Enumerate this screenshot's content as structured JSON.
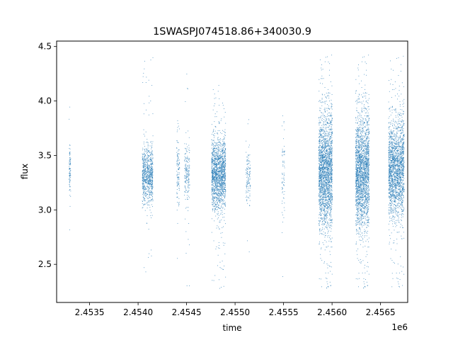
{
  "chart_data": {
    "type": "scatter",
    "title": "1SWASPJ074518.86+340030.9",
    "xlabel": "time",
    "ylabel": "flux",
    "x_offset_label": "1e6",
    "xlim": [
      2453160,
      2456780
    ],
    "ylim": [
      2.15,
      4.55
    ],
    "x_ticks": [
      2453500,
      2454000,
      2454500,
      2455000,
      2455500,
      2456000,
      2456500
    ],
    "x_tick_labels": [
      "2.4535",
      "2.4540",
      "2.4545",
      "2.4550",
      "2.4555",
      "2.4560",
      "2.4565"
    ],
    "y_ticks": [
      2.5,
      3.0,
      3.5,
      4.0,
      4.5
    ],
    "y_tick_labels": [
      "2.5",
      "3.0",
      "3.5",
      "4.0",
      "4.5"
    ],
    "grid": false,
    "legend": false,
    "marker_color": "#1f77b4",
    "observing_seasons": [
      {
        "x_start": 2453285,
        "x_end": 2453302,
        "center": 3.35,
        "spread": 0.12,
        "points": 90,
        "ymin": 2.68,
        "ymax": 4.05
      },
      {
        "x_start": 2454040,
        "x_end": 2454150,
        "center": 3.32,
        "spread": 0.13,
        "points": 800,
        "ymin": 2.4,
        "ymax": 4.43
      },
      {
        "x_start": 2454395,
        "x_end": 2454425,
        "center": 3.35,
        "spread": 0.18,
        "points": 110,
        "ymin": 2.3,
        "ymax": 4.03
      },
      {
        "x_start": 2454475,
        "x_end": 2454530,
        "center": 3.33,
        "spread": 0.14,
        "points": 180,
        "ymin": 2.3,
        "ymax": 4.3
      },
      {
        "x_start": 2454755,
        "x_end": 2454900,
        "center": 3.33,
        "spread": 0.16,
        "points": 1600,
        "ymin": 2.26,
        "ymax": 4.15
      },
      {
        "x_start": 2455110,
        "x_end": 2455155,
        "center": 3.3,
        "spread": 0.12,
        "points": 120,
        "ymin": 2.55,
        "ymax": 3.95
      },
      {
        "x_start": 2455480,
        "x_end": 2455510,
        "center": 3.35,
        "spread": 0.2,
        "points": 70,
        "ymin": 2.3,
        "ymax": 4.04
      },
      {
        "x_start": 2455860,
        "x_end": 2456000,
        "center": 3.35,
        "spread": 0.26,
        "points": 2200,
        "ymin": 2.26,
        "ymax": 4.43
      },
      {
        "x_start": 2456240,
        "x_end": 2456380,
        "center": 3.35,
        "spread": 0.26,
        "points": 2200,
        "ymin": 2.26,
        "ymax": 4.43
      },
      {
        "x_start": 2456580,
        "x_end": 2456740,
        "center": 3.38,
        "spread": 0.22,
        "points": 2000,
        "ymin": 2.26,
        "ymax": 4.42
      }
    ]
  }
}
